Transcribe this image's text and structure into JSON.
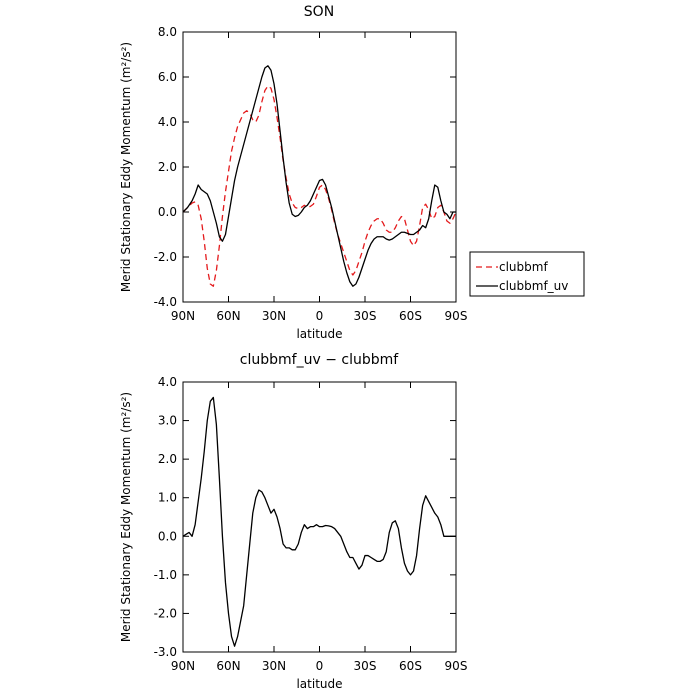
{
  "chart_data": [
    {
      "type": "line",
      "title": "SON",
      "xlabel": "latitude",
      "ylabel": "Merid Stationary Eddy Momentum (m²/s²)",
      "xlim": [
        90,
        -90
      ],
      "ylim": [
        -4,
        8
      ],
      "xticks": [
        90,
        60,
        30,
        0,
        -30,
        -60,
        -90
      ],
      "xtick_labels": [
        "90N",
        "60N",
        "30N",
        "0",
        "30S",
        "60S",
        "90S"
      ],
      "yticks": [
        -4,
        -2,
        0,
        2,
        4,
        6,
        8
      ],
      "ytick_labels": [
        "-4.0",
        "-2.0",
        "0.0",
        "2.0",
        "4.0",
        "6.0",
        "8.0"
      ],
      "grid": false,
      "legend_position": "outside-right",
      "series": [
        {
          "name": "clubbmf",
          "color": "#e41a1c",
          "dash": "dashed",
          "x": [
            90,
            87,
            84,
            82,
            80,
            78,
            76,
            74,
            72,
            70,
            68,
            66,
            64,
            62,
            60,
            58,
            56,
            54,
            52,
            50,
            48,
            46,
            44,
            42,
            40,
            38,
            36,
            34,
            32,
            30,
            28,
            26,
            24,
            22,
            20,
            18,
            16,
            14,
            12,
            10,
            8,
            6,
            4,
            2,
            0,
            -2,
            -4,
            -6,
            -8,
            -10,
            -12,
            -14,
            -16,
            -18,
            -20,
            -22,
            -24,
            -26,
            -28,
            -30,
            -32,
            -34,
            -36,
            -38,
            -40,
            -42,
            -44,
            -46,
            -48,
            -50,
            -52,
            -54,
            -56,
            -58,
            -60,
            -62,
            -64,
            -66,
            -68,
            -70,
            -72,
            -74,
            -76,
            -78,
            -80,
            -82,
            -84,
            -86,
            -88,
            -90
          ],
          "y": [
            0.0,
            0.2,
            0.4,
            0.45,
            0.3,
            -0.3,
            -1.3,
            -2.5,
            -3.2,
            -3.3,
            -2.6,
            -1.5,
            -0.2,
            0.9,
            1.8,
            2.7,
            3.3,
            3.8,
            4.1,
            4.4,
            4.5,
            4.4,
            4.1,
            4.0,
            4.3,
            4.9,
            5.4,
            5.6,
            5.5,
            5.0,
            4.2,
            3.3,
            2.3,
            1.5,
            0.8,
            0.4,
            0.2,
            0.15,
            0.2,
            0.3,
            0.2,
            0.25,
            0.35,
            0.7,
            1.1,
            1.2,
            1.0,
            0.6,
            0.1,
            -0.5,
            -1.0,
            -1.4,
            -1.8,
            -2.2,
            -2.6,
            -2.8,
            -2.6,
            -2.2,
            -1.8,
            -1.3,
            -0.9,
            -0.6,
            -0.4,
            -0.3,
            -0.3,
            -0.5,
            -0.8,
            -0.9,
            -0.9,
            -0.7,
            -0.4,
            -0.2,
            -0.3,
            -0.8,
            -1.3,
            -1.5,
            -1.3,
            -0.6,
            0.2,
            0.35,
            0.1,
            -0.3,
            -0.2,
            0.2,
            0.3,
            0.0,
            -0.4,
            -0.5,
            -0.3,
            0.0
          ]
        },
        {
          "name": "clubbmf_uv",
          "color": "#000000",
          "dash": "solid",
          "x": [
            90,
            87,
            84,
            82,
            80,
            78,
            76,
            74,
            72,
            70,
            68,
            66,
            64,
            62,
            60,
            58,
            56,
            54,
            52,
            50,
            48,
            46,
            44,
            42,
            40,
            38,
            36,
            34,
            32,
            30,
            28,
            26,
            24,
            22,
            20,
            18,
            16,
            14,
            12,
            10,
            8,
            6,
            4,
            2,
            0,
            -2,
            -4,
            -6,
            -8,
            -10,
            -12,
            -14,
            -16,
            -18,
            -20,
            -22,
            -24,
            -26,
            -28,
            -30,
            -32,
            -34,
            -36,
            -38,
            -40,
            -42,
            -44,
            -46,
            -48,
            -50,
            -52,
            -54,
            -56,
            -58,
            -60,
            -62,
            -64,
            -66,
            -68,
            -70,
            -72,
            -74,
            -76,
            -78,
            -80,
            -82,
            -84,
            -86,
            -88,
            -90
          ],
          "y": [
            0.0,
            0.2,
            0.5,
            0.8,
            1.2,
            1.0,
            0.9,
            0.8,
            0.5,
            0.0,
            -0.5,
            -1.1,
            -1.3,
            -1.0,
            -0.2,
            0.6,
            1.4,
            2.0,
            2.5,
            3.0,
            3.5,
            4.0,
            4.5,
            5.0,
            5.5,
            6.0,
            6.4,
            6.5,
            6.3,
            5.7,
            4.8,
            3.6,
            2.4,
            1.3,
            0.4,
            -0.1,
            -0.2,
            -0.15,
            0.0,
            0.2,
            0.3,
            0.5,
            0.8,
            1.1,
            1.4,
            1.45,
            1.2,
            0.7,
            0.2,
            -0.4,
            -1.0,
            -1.6,
            -2.2,
            -2.7,
            -3.1,
            -3.3,
            -3.2,
            -2.9,
            -2.5,
            -2.1,
            -1.7,
            -1.4,
            -1.2,
            -1.1,
            -1.1,
            -1.1,
            -1.2,
            -1.25,
            -1.2,
            -1.1,
            -1.0,
            -0.9,
            -0.9,
            -0.95,
            -1.0,
            -1.0,
            -0.9,
            -0.8,
            -0.6,
            -0.7,
            -0.3,
            0.5,
            1.2,
            1.1,
            0.5,
            0.0,
            -0.1,
            -0.3,
            0.0,
            0.0
          ]
        }
      ]
    },
    {
      "type": "line",
      "title": "clubbmf_uv − clubbmf",
      "xlabel": "latitude",
      "ylabel": "Merid Stationary Eddy Momentum (m²/s²)",
      "xlim": [
        90,
        -90
      ],
      "ylim": [
        -3,
        4
      ],
      "xticks": [
        90,
        60,
        30,
        0,
        -30,
        -60,
        -90
      ],
      "xtick_labels": [
        "90N",
        "60N",
        "30N",
        "0",
        "30S",
        "60S",
        "90S"
      ],
      "yticks": [
        -3,
        -2,
        -1,
        0,
        1,
        2,
        3,
        4
      ],
      "ytick_labels": [
        "-3.0",
        "-2.0",
        "-1.0",
        "0.0",
        "1.0",
        "2.0",
        "3.0",
        "4.0"
      ],
      "grid": false,
      "series": [
        {
          "color": "#000000",
          "dash": "solid",
          "x": [
            90,
            88,
            86,
            84,
            82,
            80,
            78,
            76,
            74,
            72,
            70,
            68,
            66,
            64,
            62,
            60,
            58,
            56,
            54,
            52,
            50,
            48,
            46,
            44,
            42,
            40,
            38,
            36,
            34,
            32,
            30,
            28,
            26,
            24,
            22,
            20,
            18,
            16,
            14,
            12,
            10,
            8,
            6,
            4,
            2,
            0,
            -2,
            -4,
            -6,
            -8,
            -10,
            -12,
            -14,
            -16,
            -18,
            -20,
            -22,
            -24,
            -26,
            -28,
            -30,
            -32,
            -34,
            -36,
            -38,
            -40,
            -42,
            -44,
            -46,
            -48,
            -50,
            -52,
            -54,
            -56,
            -58,
            -60,
            -62,
            -64,
            -66,
            -68,
            -70,
            -72,
            -74,
            -76,
            -78,
            -80,
            -82,
            -84,
            -86,
            -88,
            -90
          ],
          "y": [
            0.0,
            0.05,
            0.1,
            0.0,
            0.3,
            0.9,
            1.5,
            2.2,
            3.0,
            3.5,
            3.6,
            2.9,
            1.5,
            0.0,
            -1.2,
            -2.0,
            -2.6,
            -2.85,
            -2.6,
            -2.2,
            -1.8,
            -1.0,
            -0.2,
            0.6,
            1.0,
            1.2,
            1.15,
            1.0,
            0.8,
            0.6,
            0.7,
            0.5,
            0.2,
            -0.2,
            -0.3,
            -0.3,
            -0.35,
            -0.35,
            -0.2,
            0.1,
            0.3,
            0.2,
            0.25,
            0.25,
            0.3,
            0.25,
            0.25,
            0.28,
            0.27,
            0.25,
            0.2,
            0.1,
            0.0,
            -0.2,
            -0.4,
            -0.55,
            -0.55,
            -0.7,
            -0.85,
            -0.75,
            -0.5,
            -0.5,
            -0.55,
            -0.6,
            -0.65,
            -0.65,
            -0.6,
            -0.4,
            0.1,
            0.35,
            0.4,
            0.2,
            -0.3,
            -0.7,
            -0.9,
            -1.0,
            -0.9,
            -0.5,
            0.2,
            0.8,
            1.05,
            0.9,
            0.75,
            0.6,
            0.5,
            0.3,
            0.0,
            0.0,
            0.0,
            0.0,
            0.0
          ]
        }
      ]
    }
  ]
}
